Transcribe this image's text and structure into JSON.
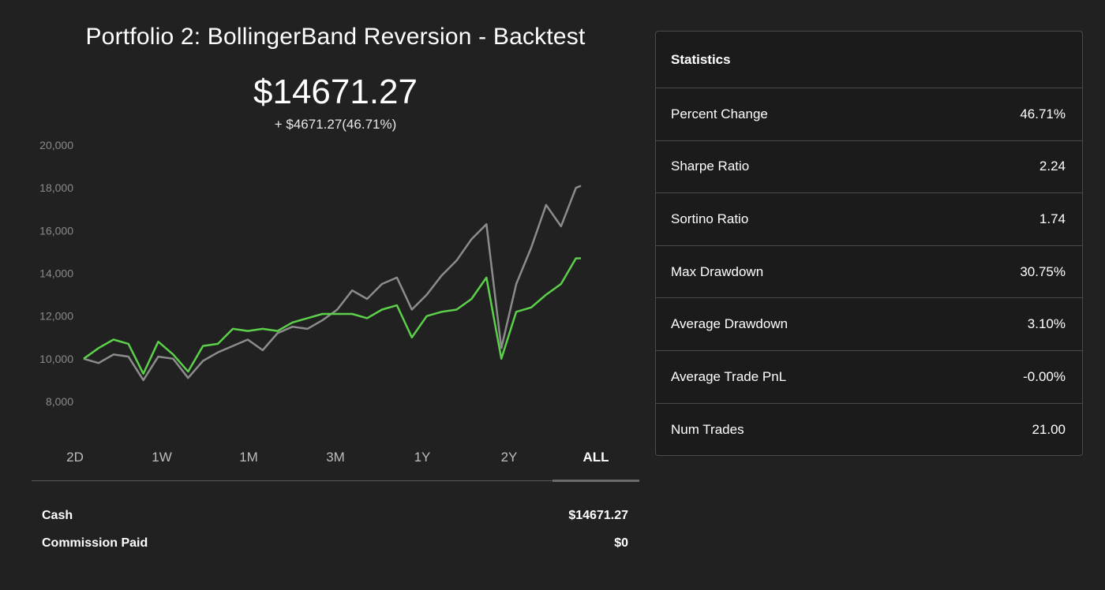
{
  "portfolio": {
    "title": "Portfolio 2: BollingerBand Reversion - Backtest",
    "value": "$14671.27",
    "change": "+ $4671.27(46.71%)"
  },
  "ranges": {
    "items": [
      "2D",
      "1W",
      "1M",
      "3M",
      "1Y",
      "2Y",
      "ALL"
    ],
    "active": "ALL"
  },
  "account": {
    "cash_label": "Cash",
    "cash_value": "$14671.27",
    "commission_label": "Commission Paid",
    "commission_value": "$0"
  },
  "stats": {
    "header": "Statistics",
    "rows": [
      {
        "label": "Percent Change",
        "value": "46.71%"
      },
      {
        "label": "Sharpe Ratio",
        "value": "2.24"
      },
      {
        "label": "Sortino Ratio",
        "value": "1.74"
      },
      {
        "label": "Max Drawdown",
        "value": "30.75%"
      },
      {
        "label": "Average Drawdown",
        "value": "3.10%"
      },
      {
        "label": "Average Trade PnL",
        "value": "-0.00%"
      },
      {
        "label": "Num Trades",
        "value": "21.00"
      }
    ]
  },
  "colors": {
    "portfolio_line": "#5cd04a",
    "benchmark_line": "#8c8c8c",
    "background": "#212121"
  },
  "chart_data": {
    "type": "line",
    "title": "",
    "xlabel": "",
    "ylabel": "",
    "ylim": [
      8000,
      20000
    ],
    "y_ticks": [
      "20,000",
      "18,000",
      "16,000",
      "14,000",
      "12,000",
      "10,000",
      "8,000"
    ],
    "y_tick_values": [
      20000,
      18000,
      16000,
      14000,
      12000,
      10000,
      8000
    ],
    "grid": false,
    "x": [
      0,
      3,
      6,
      9,
      12,
      15,
      18,
      21,
      24,
      27,
      30,
      33,
      36,
      39,
      42,
      45,
      48,
      51,
      54,
      57,
      60,
      63,
      66,
      69,
      72,
      75,
      78,
      81,
      84,
      87,
      90,
      93,
      96,
      99,
      100
    ],
    "series": [
      {
        "name": "",
        "color": "#8c8c8c",
        "values": [
          10000,
          9800,
          10200,
          10100,
          9000,
          10100,
          10000,
          9100,
          9900,
          10300,
          10600,
          10900,
          10400,
          11200,
          11500,
          11400,
          11800,
          12300,
          13200,
          12800,
          13500,
          13800,
          12300,
          13000,
          13900,
          14600,
          15600,
          16300,
          10500,
          13500,
          15200,
          17200,
          16200,
          18000,
          18100
        ]
      },
      {
        "name": "",
        "color": "#5cd04a",
        "values": [
          10000,
          10500,
          10900,
          10700,
          9300,
          10800,
          10200,
          9400,
          10600,
          10700,
          11400,
          11300,
          11400,
          11300,
          11700,
          11900,
          12100,
          12100,
          12100,
          11900,
          12300,
          12500,
          11000,
          12000,
          12200,
          12300,
          12800,
          13800,
          10000,
          12200,
          12400,
          13000,
          13500,
          14700,
          14700
        ]
      }
    ]
  }
}
